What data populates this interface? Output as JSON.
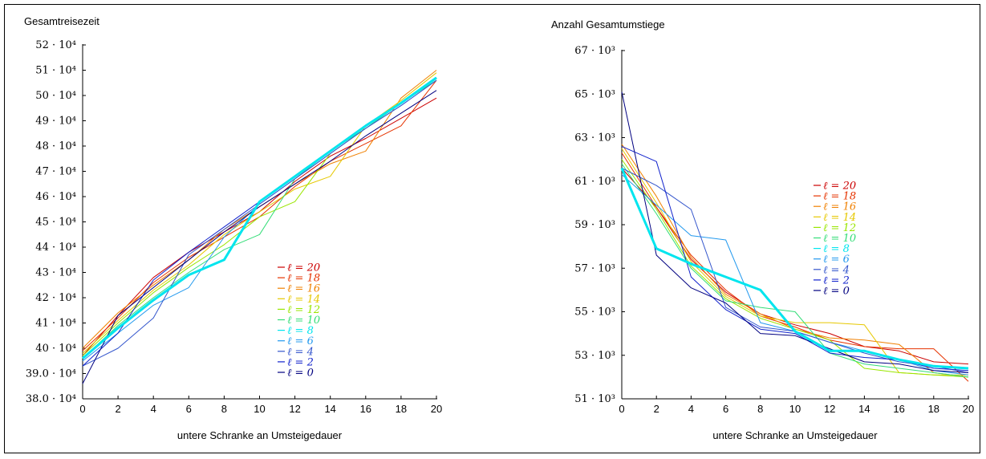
{
  "chart_data": [
    {
      "type": "line",
      "title": "Gesamtreisezeit",
      "xlabel": "untere Schranke an Umsteigedauer",
      "ylabel": "",
      "x": [
        0,
        2,
        4,
        6,
        8,
        10,
        12,
        14,
        16,
        18,
        20
      ],
      "x_ticks": [
        "0",
        "2",
        "4",
        "6",
        "8",
        "10",
        "12",
        "14",
        "16",
        "18",
        "20"
      ],
      "ylim": [
        380000,
        520000
      ],
      "y_ticks": [
        {
          "value": 380000,
          "label": "38.0 · 10⁴"
        },
        {
          "value": 390000,
          "label": "39.0 · 10⁴"
        },
        {
          "value": 400000,
          "label": "40 · 10⁴"
        },
        {
          "value": 410000,
          "label": "41 · 10⁴"
        },
        {
          "value": 420000,
          "label": "42 · 10⁴"
        },
        {
          "value": 430000,
          "label": "43 · 10⁴"
        },
        {
          "value": 440000,
          "label": "44 · 10⁴"
        },
        {
          "value": 450000,
          "label": "45 · 10⁴"
        },
        {
          "value": 460000,
          "label": "46 · 10⁴"
        },
        {
          "value": 470000,
          "label": "47 · 10⁴"
        },
        {
          "value": 480000,
          "label": "48 · 10⁴"
        },
        {
          "value": 490000,
          "label": "49 · 10⁴"
        },
        {
          "value": 500000,
          "label": "50 · 10⁴"
        },
        {
          "value": 510000,
          "label": "51 · 10⁴"
        },
        {
          "value": 520000,
          "label": "52 · 10⁴"
        }
      ],
      "legend_position": "center-right",
      "series": [
        {
          "name": "ℓ = 20",
          "color": "#cc0000",
          "width": 1,
          "values": [
            397000,
            413000,
            428000,
            438000,
            446000,
            454000,
            466000,
            476000,
            483000,
            491000,
            499000
          ]
        },
        {
          "name": "ℓ = 18",
          "color": "#e63300",
          "width": 1,
          "values": [
            399000,
            412000,
            426000,
            436000,
            444000,
            452000,
            464000,
            474000,
            481000,
            488000,
            506000
          ]
        },
        {
          "name": "ℓ = 16",
          "color": "#f08000",
          "width": 1,
          "values": [
            400000,
            414000,
            425000,
            435000,
            447000,
            456000,
            465000,
            473000,
            478000,
            499000,
            510000
          ]
        },
        {
          "name": "ℓ = 14",
          "color": "#e6c800",
          "width": 1,
          "values": [
            398000,
            411000,
            423000,
            433000,
            445000,
            454000,
            463000,
            468000,
            488000,
            498000,
            509000
          ]
        },
        {
          "name": "ℓ = 12",
          "color": "#99e600",
          "width": 1,
          "values": [
            397000,
            410000,
            422000,
            432000,
            441000,
            452000,
            458000,
            477000,
            487000,
            497000,
            507000
          ]
        },
        {
          "name": "ℓ = 10",
          "color": "#33dd77",
          "width": 1,
          "values": [
            396000,
            409000,
            420000,
            430000,
            439000,
            445000,
            467000,
            478000,
            487000,
            497000,
            506000
          ]
        },
        {
          "name": "ℓ = 8",
          "color": "#00e5ee",
          "width": 3,
          "values": [
            396000,
            408000,
            419000,
            429000,
            435000,
            458000,
            468000,
            478000,
            488000,
            497000,
            507000
          ]
        },
        {
          "name": "ℓ = 6",
          "color": "#2299ee",
          "width": 1,
          "values": [
            395000,
            406000,
            417000,
            424000,
            444000,
            457000,
            467000,
            477000,
            487000,
            496000,
            506000
          ]
        },
        {
          "name": "ℓ = 4",
          "color": "#3355cc",
          "width": 1,
          "values": [
            393000,
            400000,
            412000,
            437000,
            447000,
            457000,
            467000,
            477000,
            487000,
            496000,
            506000
          ]
        },
        {
          "name": "ℓ = 2",
          "color": "#1122cc",
          "width": 1,
          "values": [
            393000,
            406000,
            427000,
            438000,
            448000,
            458000,
            468000,
            478000,
            488000,
            497000,
            507000
          ]
        },
        {
          "name": "ℓ = 0",
          "color": "#000080",
          "width": 1,
          "values": [
            386000,
            413000,
            424000,
            435000,
            446000,
            456000,
            465000,
            474000,
            484000,
            493000,
            502000
          ]
        }
      ]
    },
    {
      "type": "line",
      "title": "Anzahl Gesamtumstiege",
      "xlabel": "untere Schranke an Umsteigedauer",
      "ylabel": "",
      "x": [
        0,
        2,
        4,
        6,
        8,
        10,
        12,
        14,
        16,
        18,
        20
      ],
      "x_ticks": [
        "0",
        "2",
        "4",
        "6",
        "8",
        "10",
        "12",
        "14",
        "16",
        "18",
        "20"
      ],
      "ylim": [
        51000,
        67000
      ],
      "y_ticks": [
        {
          "value": 51000,
          "label": "51 · 10³"
        },
        {
          "value": 53000,
          "label": "53 · 10³"
        },
        {
          "value": 55000,
          "label": "55 · 10³"
        },
        {
          "value": 57000,
          "label": "57 · 10³"
        },
        {
          "value": 59000,
          "label": "59 · 10³"
        },
        {
          "value": 61000,
          "label": "61 · 10³"
        },
        {
          "value": 63000,
          "label": "63 · 10³"
        },
        {
          "value": 65000,
          "label": "65 · 10³"
        },
        {
          "value": 67000,
          "label": "67 · 10³"
        }
      ],
      "legend_position": "center-right",
      "series": [
        {
          "name": "ℓ = 20",
          "color": "#cc0000",
          "width": 1,
          "values": [
            61600,
            59800,
            57400,
            55900,
            54900,
            54400,
            54000,
            53400,
            53200,
            52700,
            52600
          ]
        },
        {
          "name": "ℓ = 18",
          "color": "#e63300",
          "width": 1,
          "values": [
            62300,
            59800,
            57600,
            56000,
            54800,
            54300,
            53700,
            53400,
            53300,
            53300,
            51800
          ]
        },
        {
          "name": "ℓ = 16",
          "color": "#f08000",
          "width": 1,
          "values": [
            62700,
            60300,
            57500,
            55800,
            54900,
            54200,
            53800,
            53700,
            53500,
            52200,
            52000
          ]
        },
        {
          "name": "ℓ = 14",
          "color": "#e6c800",
          "width": 1,
          "values": [
            62500,
            60000,
            57300,
            55700,
            54800,
            54500,
            54500,
            54400,
            52200,
            52100,
            52100
          ]
        },
        {
          "name": "ℓ = 12",
          "color": "#99e600",
          "width": 1,
          "values": [
            62000,
            59700,
            57100,
            55600,
            54700,
            54200,
            53700,
            52400,
            52200,
            52100,
            52000
          ]
        },
        {
          "name": "ℓ = 10",
          "color": "#33dd77",
          "width": 1,
          "values": [
            61800,
            59500,
            57000,
            55500,
            55200,
            55000,
            53100,
            52600,
            52400,
            52200,
            52000
          ]
        },
        {
          "name": "ℓ = 8",
          "color": "#00e5ee",
          "width": 3,
          "values": [
            61600,
            57900,
            57200,
            56600,
            56000,
            54100,
            53200,
            53200,
            52800,
            52500,
            52400
          ]
        },
        {
          "name": "ℓ = 6",
          "color": "#2299ee",
          "width": 1,
          "values": [
            61300,
            59900,
            58500,
            58300,
            54500,
            54100,
            53600,
            53200,
            52800,
            52300,
            52100
          ]
        },
        {
          "name": "ℓ = 4",
          "color": "#3355cc",
          "width": 1,
          "values": [
            61600,
            60800,
            59700,
            55200,
            54300,
            54100,
            53600,
            53100,
            52700,
            52500,
            52200
          ]
        },
        {
          "name": "ℓ = 2",
          "color": "#1122cc",
          "width": 1,
          "values": [
            62600,
            61900,
            56600,
            55100,
            54200,
            54000,
            53100,
            52900,
            52800,
            52400,
            52300
          ]
        },
        {
          "name": "ℓ = 0",
          "color": "#000080",
          "width": 1,
          "values": [
            65100,
            57600,
            56100,
            55400,
            54000,
            53900,
            53300,
            52700,
            52600,
            52300,
            52200
          ]
        }
      ]
    }
  ]
}
